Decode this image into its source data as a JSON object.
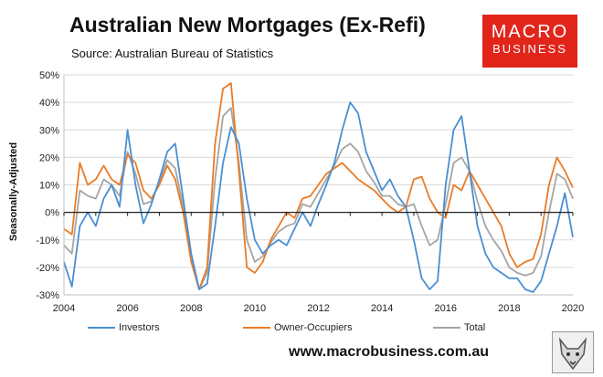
{
  "title": "Australian New Mortgages (Ex-Refi)",
  "subtitle": "Source: Australian Bureau of Statistics",
  "logo": {
    "line1": "MACRO",
    "line2": "BUSINESS"
  },
  "url": "www.macrobusiness.com.au",
  "colors": {
    "investors": "#4a8fd3",
    "owner_occupiers": "#ea7b26",
    "total": "#a5a5a5",
    "logo_bg": "#e1251b"
  },
  "chart_data": {
    "type": "line",
    "xlim": [
      2004,
      2020
    ],
    "ylim": [
      -30,
      50
    ],
    "ylabel": "Seasonally-Adjusted",
    "x_ticks": [
      "2004",
      "2006",
      "2008",
      "2010",
      "2012",
      "2014",
      "2016",
      "2018",
      "2020"
    ],
    "y_ticks": [
      "50%",
      "40%",
      "30%",
      "20%",
      "10%",
      "0%",
      "-10%",
      "-20%",
      "-30%"
    ],
    "grid": "horizontal",
    "legend": "bottom",
    "x": [
      2004.0,
      2004.25,
      2004.5,
      2004.75,
      2005.0,
      2005.25,
      2005.5,
      2005.75,
      2006.0,
      2006.25,
      2006.5,
      2006.75,
      2007.0,
      2007.25,
      2007.5,
      2007.75,
      2008.0,
      2008.25,
      2008.5,
      2008.75,
      2009.0,
      2009.25,
      2009.5,
      2009.75,
      2010.0,
      2010.25,
      2010.5,
      2010.75,
      2011.0,
      2011.25,
      2011.5,
      2011.75,
      2012.0,
      2012.25,
      2012.5,
      2012.75,
      2013.0,
      2013.25,
      2013.5,
      2013.75,
      2014.0,
      2014.25,
      2014.5,
      2014.75,
      2015.0,
      2015.25,
      2015.5,
      2015.75,
      2016.0,
      2016.25,
      2016.5,
      2016.75,
      2017.0,
      2017.25,
      2017.5,
      2017.75,
      2018.0,
      2018.25,
      2018.5,
      2018.75,
      2019.0,
      2019.25,
      2019.5,
      2019.75,
      2020.0
    ],
    "series": [
      {
        "name": "Investors",
        "values": [
          -18,
          -27,
          -5,
          0,
          -5,
          5,
          10,
          2,
          30,
          10,
          -4,
          3,
          12,
          22,
          25,
          5,
          -15,
          -28,
          -26,
          -5,
          18,
          31,
          25,
          5,
          -10,
          -15,
          -12,
          -10,
          -12,
          -6,
          0,
          -5,
          3,
          10,
          18,
          30,
          40,
          36,
          22,
          15,
          8,
          12,
          6,
          2,
          -10,
          -24,
          -28,
          -25,
          10,
          30,
          35,
          15,
          -5,
          -15,
          -20,
          -22,
          -24,
          -24,
          -28,
          -29,
          -25,
          -15,
          -5,
          7,
          -9
        ]
      },
      {
        "name": "Owner-Occupiers",
        "values": [
          -6,
          -8,
          18,
          10,
          12,
          17,
          12,
          10,
          21,
          18,
          8,
          5,
          10,
          17,
          12,
          0,
          -18,
          -28,
          -20,
          25,
          45,
          47,
          15,
          -20,
          -22,
          -18,
          -10,
          -5,
          0,
          -2,
          5,
          6,
          10,
          14,
          16,
          18,
          15,
          12,
          10,
          8,
          5,
          2,
          0,
          2,
          12,
          13,
          5,
          0,
          -2,
          10,
          8,
          15,
          10,
          5,
          0,
          -5,
          -15,
          -20,
          -18,
          -17,
          -8,
          10,
          20,
          15,
          9
        ]
      },
      {
        "name": "Total",
        "values": [
          -12,
          -15,
          8,
          6,
          5,
          12,
          10,
          6,
          22,
          14,
          3,
          4,
          11,
          19,
          16,
          2,
          -17,
          -28,
          -22,
          12,
          35,
          38,
          18,
          -10,
          -18,
          -16,
          -11,
          -7,
          -5,
          -4,
          3,
          2,
          7,
          12,
          17,
          23,
          25,
          22,
          15,
          11,
          6,
          6,
          3,
          2,
          3,
          -5,
          -12,
          -10,
          3,
          18,
          20,
          15,
          4,
          -5,
          -10,
          -14,
          -20,
          -22,
          -23,
          -22,
          -16,
          0,
          14,
          12,
          5
        ]
      }
    ]
  }
}
